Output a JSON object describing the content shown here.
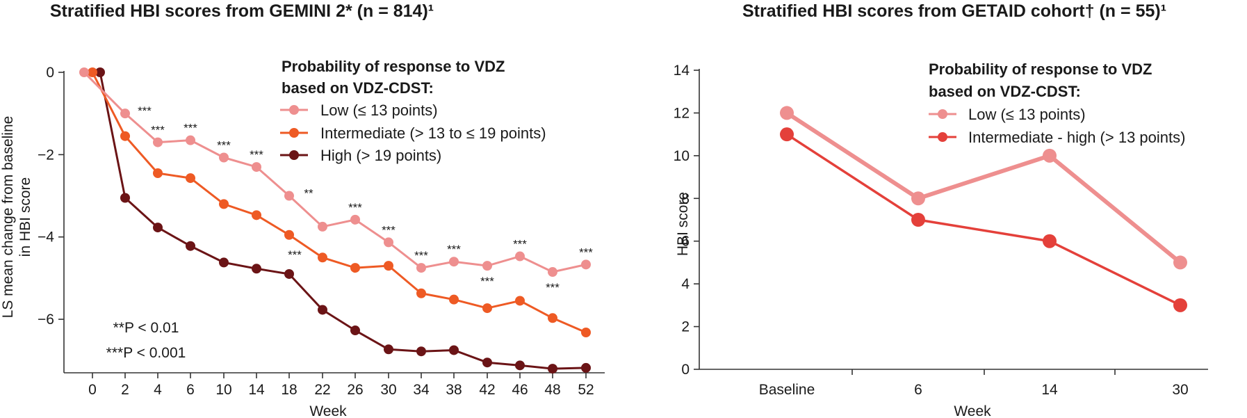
{
  "chart_data": [
    {
      "type": "line",
      "title": "Stratified HBI scores from GEMINI 2* (n = 814)¹",
      "xlabel": "Week",
      "ylabel": "LS mean change from baseline in HBI score",
      "ylim": [
        -7.3,
        0
      ],
      "yticks": [
        0,
        -2,
        -4,
        -6
      ],
      "ytick_labels": [
        "0",
        "−2",
        "−4",
        "−6"
      ],
      "xticks": [
        "0",
        "2",
        "4",
        "6",
        "10",
        "14",
        "18",
        "22",
        "26",
        "30",
        "34",
        "38",
        "42",
        "46",
        "48",
        "52"
      ],
      "legend_title_line1": "Probability of response to VDZ",
      "legend_title_line2": "based on VDZ-CDST:",
      "legend_placement": "top-right",
      "series": [
        {
          "name": "Low (≤ 13 points)",
          "color": "#ee8f8f",
          "values": [
            0,
            -1.0,
            -1.7,
            -1.65,
            -2.07,
            -2.3,
            -3.0,
            -3.75,
            -3.58,
            -4.13,
            -4.75,
            -4.6,
            -4.7,
            -4.47,
            -4.85,
            -4.67
          ]
        },
        {
          "name": "Intermediate (> 13 to ≤ 19 points)",
          "color": "#ee5a24",
          "values": [
            0,
            -1.55,
            -2.45,
            -2.57,
            -3.2,
            -3.47,
            -3.95,
            -4.5,
            -4.75,
            -4.7,
            -5.37,
            -5.52,
            -5.73,
            -5.55,
            -5.97,
            -6.32
          ]
        },
        {
          "name": "High (> 19 points)",
          "color": "#6b1416",
          "values": [
            0,
            -3.05,
            -3.77,
            -4.22,
            -4.62,
            -4.77,
            -4.9,
            -5.77,
            -6.27,
            -6.73,
            -6.78,
            -6.75,
            -7.05,
            -7.12,
            -7.2,
            -7.18
          ]
        }
      ],
      "annotations": [
        {
          "category_index": 1,
          "value": -1.0,
          "text": "***",
          "position": "right"
        },
        {
          "category_index": 2,
          "value": -1.7,
          "text": "***",
          "position": "above"
        },
        {
          "category_index": 3,
          "value": -1.65,
          "text": "***",
          "position": "above"
        },
        {
          "category_index": 4,
          "value": -2.07,
          "text": "***",
          "position": "above"
        },
        {
          "category_index": 5,
          "value": -2.3,
          "text": "***",
          "position": "above"
        },
        {
          "category_index": 6,
          "value": -3.0,
          "text": "**",
          "position": "right"
        },
        {
          "category_index": 6,
          "value": -3.95,
          "text": "***",
          "position": "below-right"
        },
        {
          "category_index": 8,
          "value": -3.58,
          "text": "***",
          "position": "above"
        },
        {
          "category_index": 9,
          "value": -4.13,
          "text": "***",
          "position": "above"
        },
        {
          "category_index": 10,
          "value": -4.75,
          "text": "***",
          "position": "above"
        },
        {
          "category_index": 11,
          "value": -4.6,
          "text": "***",
          "position": "above"
        },
        {
          "category_index": 12,
          "value": -4.7,
          "text": "***",
          "position": "below"
        },
        {
          "category_index": 13,
          "value": -4.47,
          "text": "***",
          "position": "above"
        },
        {
          "category_index": 14,
          "value": -4.85,
          "text": "***",
          "position": "below"
        },
        {
          "category_index": 15,
          "value": -4.67,
          "text": "***",
          "position": "above"
        }
      ],
      "notes": [
        "**P < 0.01",
        "***P < 0.001"
      ]
    },
    {
      "type": "line",
      "title": "Stratified HBI scores from GETAID cohort† (n = 55)¹",
      "xlabel": "Week",
      "ylabel": "HBI score",
      "ylim": [
        0,
        14
      ],
      "yticks": [
        0,
        2,
        4,
        6,
        8,
        10,
        12,
        14
      ],
      "categories": [
        "Baseline",
        "6",
        "14",
        "30"
      ],
      "legend_title_line1": "Probability of response to VDZ",
      "legend_title_line2": "based on VDZ-CDST:",
      "legend_placement": "top-right",
      "series": [
        {
          "name": "Low (≤ 13 points)",
          "color": "#ee8f8f",
          "values": [
            12,
            8,
            10,
            5
          ]
        },
        {
          "name": "Intermediate - high (> 13 points)",
          "color": "#e4403a",
          "values": [
            11,
            7,
            6,
            3
          ]
        }
      ]
    }
  ]
}
